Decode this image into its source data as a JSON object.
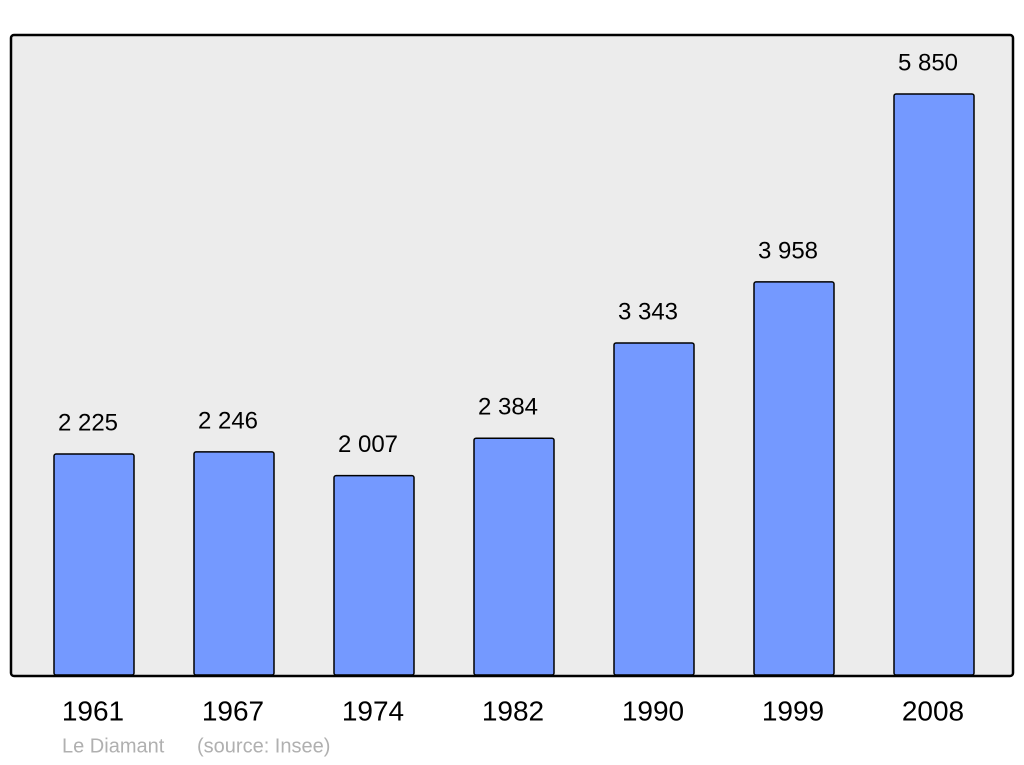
{
  "chart_data": {
    "type": "bar",
    "categories": [
      "1961",
      "1967",
      "1974",
      "1982",
      "1990",
      "1999",
      "2008"
    ],
    "values": [
      2225,
      2246,
      2007,
      2384,
      3343,
      3958,
      5850
    ],
    "value_labels": [
      "2 225",
      "2 246",
      "2 007",
      "2 384",
      "3 343",
      "3 958",
      "5 850"
    ],
    "color": "#7499ff",
    "place": "Le Diamant",
    "source": "(source: Insee)"
  }
}
